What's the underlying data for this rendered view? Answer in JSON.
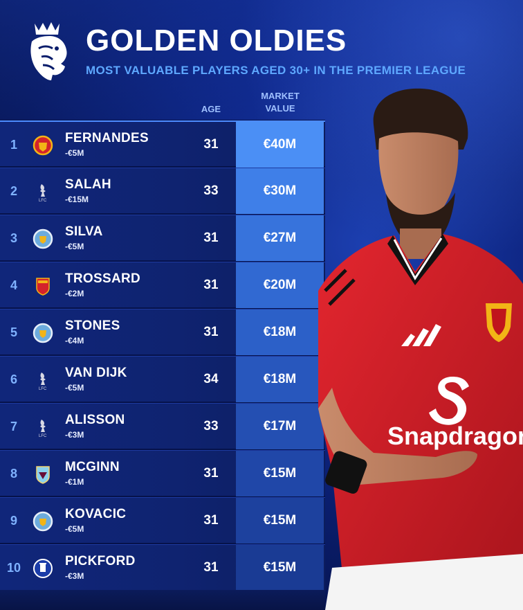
{
  "header": {
    "title": "GOLDEN OLDIES",
    "subtitle": "MOST VALUABLE PLAYERS AGED 30+ IN THE PREMIER LEAGUE",
    "logo_icon": "premier-league-lion-icon"
  },
  "columns": {
    "age": "AGE",
    "market_value_line1": "MARKET",
    "market_value_line2": "VALUE"
  },
  "colors": {
    "accent_blue": "#5ea8ff",
    "value_cell_shades": [
      "#4b8ff5",
      "#3f7fe8",
      "#3773dc",
      "#3169d2",
      "#2c60c8",
      "#2857bd",
      "#244fb2",
      "#2047a8",
      "#1d419e",
      "#1a3b94"
    ],
    "jersey_red": "#d4222b"
  },
  "players": [
    {
      "rank": "1",
      "name": "FERNANDES",
      "change": "-€5M",
      "age": "31",
      "value": "€40M",
      "club_icon": "manchester-united-crest-icon"
    },
    {
      "rank": "2",
      "name": "SALAH",
      "change": "-€15M",
      "age": "33",
      "value": "€30M",
      "club_icon": "liverpool-crest-icon"
    },
    {
      "rank": "3",
      "name": "SILVA",
      "change": "-€5M",
      "age": "31",
      "value": "€27M",
      "club_icon": "manchester-city-crest-icon"
    },
    {
      "rank": "4",
      "name": "TROSSARD",
      "change": "-€2M",
      "age": "31",
      "value": "€20M",
      "club_icon": "arsenal-crest-icon"
    },
    {
      "rank": "5",
      "name": "STONES",
      "change": "-€4M",
      "age": "31",
      "value": "€18M",
      "club_icon": "manchester-city-crest-icon"
    },
    {
      "rank": "6",
      "name": "VAN DIJK",
      "change": "-€5M",
      "age": "34",
      "value": "€18M",
      "club_icon": "liverpool-crest-icon"
    },
    {
      "rank": "7",
      "name": "ALISSON",
      "change": "-€3M",
      "age": "33",
      "value": "€17M",
      "club_icon": "liverpool-crest-icon"
    },
    {
      "rank": "8",
      "name": "MCGINN",
      "change": "-€1M",
      "age": "31",
      "value": "€15M",
      "club_icon": "aston-villa-crest-icon"
    },
    {
      "rank": "9",
      "name": "KOVACIC",
      "change": "-€5M",
      "age": "31",
      "value": "€15M",
      "club_icon": "manchester-city-crest-icon"
    },
    {
      "rank": "10",
      "name": "PICKFORD",
      "change": "-€3M",
      "age": "31",
      "value": "€15M",
      "club_icon": "everton-crest-icon"
    }
  ],
  "player_photo": {
    "icon": "player-photo-icon",
    "sponsor": "Snapdragon"
  }
}
